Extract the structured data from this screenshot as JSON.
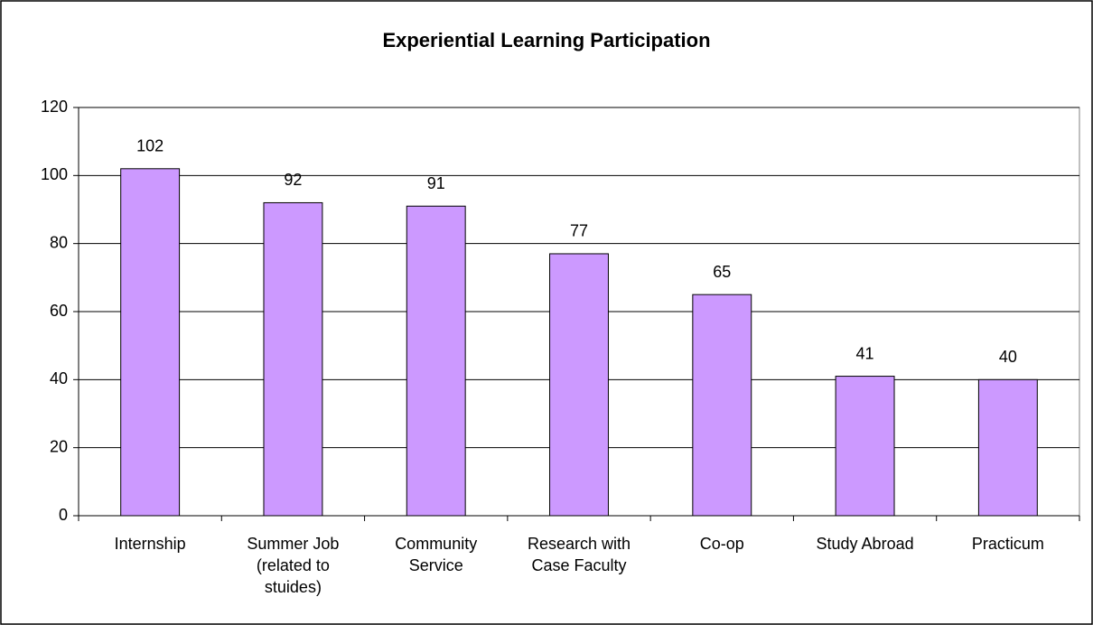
{
  "chart_data": {
    "type": "bar",
    "title": "Experiential Learning Participation",
    "categories": [
      "Internship",
      "Summer Job (related to stuides)",
      "Community Service",
      "Research with Case Faculty",
      "Co-op",
      "Study Abroad",
      "Practicum"
    ],
    "values": [
      102,
      92,
      91,
      77,
      65,
      41,
      40
    ],
    "color": "#cc99ff",
    "ylim": [
      0,
      120
    ],
    "yticks": [
      0,
      20,
      40,
      60,
      80,
      100,
      120
    ],
    "grid": true
  }
}
